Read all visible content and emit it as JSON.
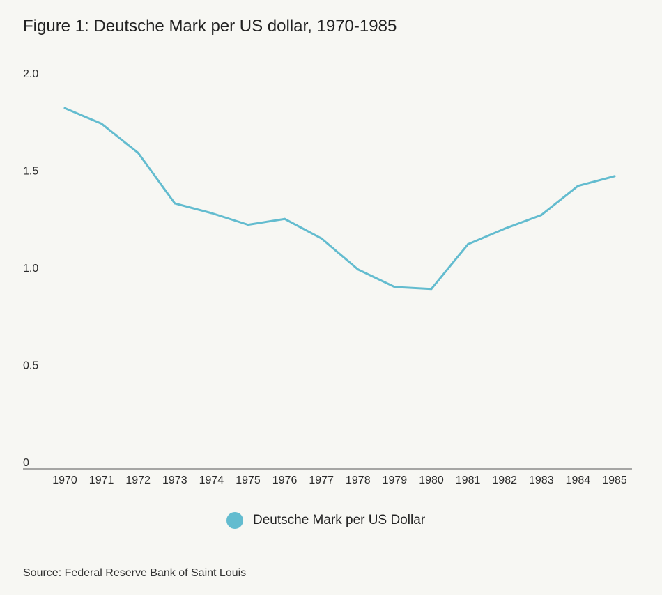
{
  "title": "Figure 1: Deutsche Mark per US dollar, 1970-1985",
  "source": "Source: Federal Reserve Bank of Saint Louis",
  "legend": {
    "label": "Deutsche Mark per US Dollar",
    "color": "#63bccf"
  },
  "chart_data": {
    "type": "line",
    "title": "Figure 1: Deutsche Mark per US dollar, 1970-1985",
    "xlabel": "",
    "ylabel": "",
    "x": [
      "1970",
      "1971",
      "1972",
      "1973",
      "1974",
      "1975",
      "1976",
      "1977",
      "1978",
      "1979",
      "1980",
      "1981",
      "1982",
      "1983",
      "1984",
      "1985"
    ],
    "series": [
      {
        "name": "Deutsche Mark per US Dollar",
        "color": "#63bccf",
        "values": [
          1.82,
          1.74,
          1.59,
          1.33,
          1.28,
          1.22,
          1.25,
          1.15,
          0.99,
          0.9,
          0.89,
          1.12,
          1.2,
          1.27,
          1.42,
          1.47
        ]
      }
    ],
    "ylim": [
      0,
      2.0
    ],
    "yticks": [
      "0",
      "0.5",
      "1.0",
      "1.5",
      "2.0"
    ],
    "ytick_values": [
      0,
      0.5,
      1.0,
      1.5,
      2.0
    ],
    "grid": false,
    "legend_position": "bottom-center"
  }
}
